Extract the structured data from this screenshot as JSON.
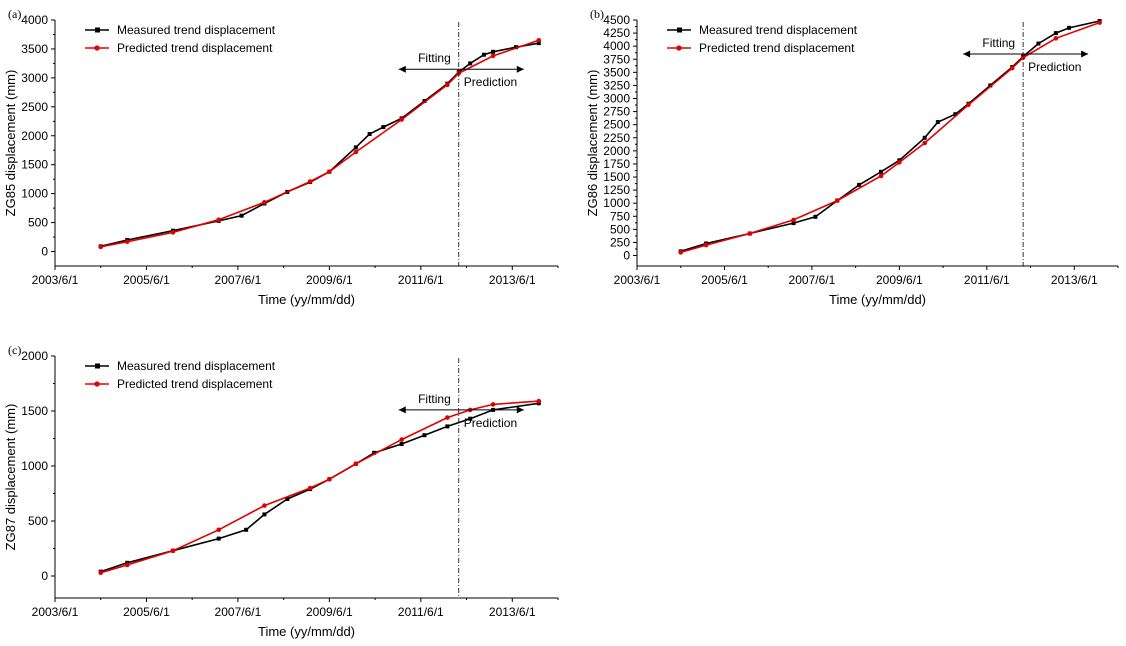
{
  "colors": {
    "measured": "#000000",
    "predicted": "#e00000",
    "axis": "#000000"
  },
  "chart_data": [
    {
      "type": "line",
      "panel_label": "(a)",
      "xlabel": "Time (yy/mm/dd)",
      "ylabel": "ZG85 displacement (mm)",
      "x_tick_labels": [
        "2003/6/1",
        "2005/6/1",
        "2007/6/1",
        "2009/6/1",
        "2011/6/1",
        "2013/6/1"
      ],
      "x_tick_years": [
        2003.42,
        2005.42,
        2007.42,
        2009.42,
        2011.42,
        2013.42
      ],
      "xlim": [
        2003.42,
        2014.42
      ],
      "ylim": [
        -250,
        4000
      ],
      "y_ticks": [
        0,
        500,
        1000,
        1500,
        2000,
        2500,
        3000,
        3500,
        4000
      ],
      "legend": "top-left",
      "divider_x": 2012.25,
      "annotations": {
        "fitting": "Fitting",
        "prediction": "Prediction"
      },
      "annotation_y": 3150,
      "series": [
        {
          "name": "Measured trend displacement",
          "marker": "square",
          "x": [
            2004.42,
            2005.0,
            2006.0,
            2007.0,
            2007.5,
            2008.0,
            2008.5,
            2009.0,
            2009.42,
            2010.0,
            2010.3,
            2010.6,
            2011.0,
            2011.5,
            2012.0,
            2012.25,
            2012.5,
            2012.8,
            2013.0,
            2013.5,
            2014.0
          ],
          "y": [
            90,
            200,
            360,
            530,
            620,
            830,
            1030,
            1200,
            1380,
            1800,
            2030,
            2150,
            2300,
            2600,
            2900,
            3100,
            3250,
            3400,
            3450,
            3530,
            3600
          ]
        },
        {
          "name": "Predicted trend displacement",
          "marker": "circle",
          "x": [
            2004.42,
            2005.0,
            2006.0,
            2007.0,
            2008.0,
            2009.0,
            2009.42,
            2010.0,
            2011.0,
            2012.0,
            2012.25,
            2013.0,
            2014.0
          ],
          "y": [
            80,
            170,
            330,
            550,
            850,
            1210,
            1380,
            1720,
            2280,
            2880,
            3080,
            3380,
            3650
          ]
        }
      ]
    },
    {
      "type": "line",
      "panel_label": "(b)",
      "xlabel": "Time (yy/mm/dd)",
      "ylabel": "ZG86 displacement (mm)",
      "x_tick_labels": [
        "2003/6/1",
        "2005/6/1",
        "2007/6/1",
        "2009/6/1",
        "2011/6/1",
        "2013/6/1"
      ],
      "x_tick_years": [
        2003.42,
        2005.42,
        2007.42,
        2009.42,
        2011.42,
        2013.42
      ],
      "xlim": [
        2003.42,
        2014.42
      ],
      "ylim": [
        -200,
        4500
      ],
      "y_ticks": [
        0,
        250,
        500,
        750,
        1000,
        1250,
        1500,
        1750,
        2000,
        2250,
        2500,
        2750,
        3000,
        3250,
        3500,
        3750,
        4000,
        4250,
        4500
      ],
      "legend": "top-left",
      "divider_x": 2012.25,
      "annotations": {
        "fitting": "Fitting",
        "prediction": "Prediction"
      },
      "annotation_y": 3850,
      "series": [
        {
          "name": "Measured trend displacement",
          "marker": "square",
          "x": [
            2004.42,
            2005.0,
            2006.0,
            2007.0,
            2007.5,
            2008.0,
            2008.5,
            2009.0,
            2009.42,
            2010.0,
            2010.3,
            2010.7,
            2011.0,
            2011.5,
            2012.0,
            2012.25,
            2012.6,
            2013.0,
            2013.3,
            2014.0
          ],
          "y": [
            80,
            230,
            420,
            620,
            740,
            1050,
            1350,
            1600,
            1820,
            2250,
            2550,
            2700,
            2900,
            3250,
            3600,
            3800,
            4050,
            4250,
            4350,
            4480
          ]
        },
        {
          "name": "Predicted trend displacement",
          "marker": "circle",
          "x": [
            2004.42,
            2005.0,
            2006.0,
            2007.0,
            2008.0,
            2009.0,
            2009.42,
            2010.0,
            2011.0,
            2012.0,
            2012.25,
            2013.0,
            2014.0
          ],
          "y": [
            60,
            200,
            420,
            680,
            1050,
            1520,
            1780,
            2150,
            2880,
            3580,
            3780,
            4150,
            4450
          ]
        }
      ]
    },
    {
      "type": "line",
      "panel_label": "(c)",
      "xlabel": "Time (yy/mm/dd)",
      "ylabel": "ZG87 displacement (mm)",
      "x_tick_labels": [
        "2003/6/1",
        "2005/6/1",
        "2007/6/1",
        "2009/6/1",
        "2011/6/1",
        "2013/6/1"
      ],
      "x_tick_years": [
        2003.42,
        2005.42,
        2007.42,
        2009.42,
        2011.42,
        2013.42
      ],
      "xlim": [
        2003.42,
        2014.42
      ],
      "ylim": [
        -200,
        2000
      ],
      "y_ticks": [
        0,
        500,
        1000,
        1500,
        2000
      ],
      "legend": "top-left",
      "divider_x": 2012.25,
      "annotations": {
        "fitting": "Fitting",
        "prediction": "Prediction"
      },
      "annotation_y": 1510,
      "series": [
        {
          "name": "Measured trend displacement",
          "marker": "square",
          "x": [
            2004.42,
            2005.0,
            2006.0,
            2007.0,
            2007.6,
            2008.0,
            2008.5,
            2009.0,
            2009.42,
            2010.0,
            2010.4,
            2011.0,
            2011.5,
            2012.0,
            2012.5,
            2013.0,
            2014.0
          ],
          "y": [
            40,
            120,
            230,
            340,
            420,
            560,
            700,
            790,
            880,
            1020,
            1120,
            1200,
            1280,
            1360,
            1430,
            1510,
            1570
          ]
        },
        {
          "name": "Predicted trend displacement",
          "marker": "circle",
          "x": [
            2004.42,
            2005.0,
            2006.0,
            2007.0,
            2008.0,
            2009.0,
            2009.42,
            2010.0,
            2011.0,
            2012.0,
            2012.5,
            2013.0,
            2014.0
          ],
          "y": [
            30,
            100,
            230,
            420,
            640,
            800,
            880,
            1020,
            1240,
            1440,
            1510,
            1560,
            1590
          ]
        }
      ]
    }
  ]
}
